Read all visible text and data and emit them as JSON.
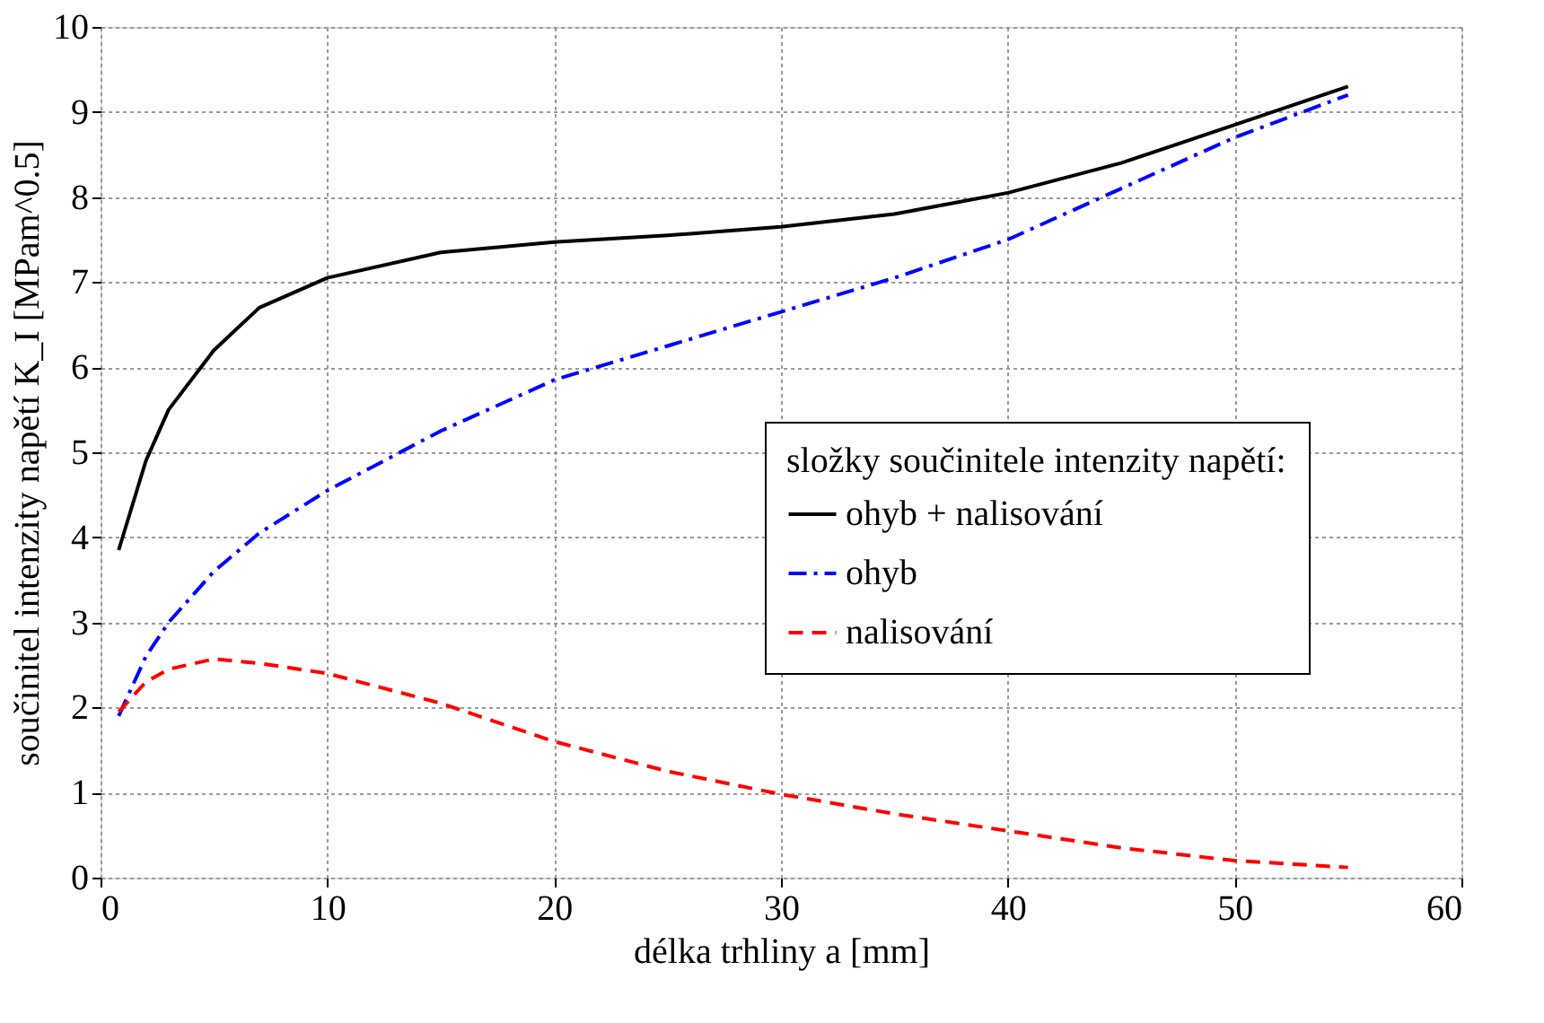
{
  "chart_data": {
    "type": "line",
    "xlabel": "délka trhliny a [mm]",
    "ylabel": "součinitel intenzity napětí K_I [MPam^0.5]",
    "legend_title": "složky součinitele intenzity napětí:",
    "legend": "right",
    "grid": true,
    "xlim": [
      0,
      60
    ],
    "xticks": [
      0,
      10,
      20,
      30,
      40,
      50,
      60
    ],
    "ylim": [
      0,
      10
    ],
    "yticks": [
      0,
      1,
      2,
      3,
      4,
      5,
      6,
      7,
      8,
      9,
      10
    ],
    "x": [
      0.8,
      2,
      3,
      5,
      7,
      10,
      15,
      20,
      25,
      30,
      35,
      40,
      45,
      50,
      55
    ],
    "series": [
      {
        "name": "ohyb + nalisování",
        "color": "#000000",
        "line_style": "solid",
        "values": [
          3.85,
          4.9,
          5.5,
          6.2,
          6.7,
          7.05,
          7.35,
          7.47,
          7.55,
          7.65,
          7.8,
          8.05,
          8.4,
          8.85,
          9.3
        ]
      },
      {
        "name": "ohyb",
        "color": "#0000ff",
        "line_style": "dashdot",
        "values": [
          1.9,
          2.6,
          3.0,
          3.6,
          4.05,
          4.55,
          5.25,
          5.85,
          6.25,
          6.65,
          7.05,
          7.5,
          8.1,
          8.7,
          9.2
        ]
      },
      {
        "name": "nalisování",
        "color": "#ff0000",
        "line_style": "dashed",
        "values": [
          1.95,
          2.3,
          2.45,
          2.57,
          2.52,
          2.4,
          2.05,
          1.6,
          1.25,
          0.98,
          0.75,
          0.55,
          0.35,
          0.2,
          0.12
        ]
      }
    ]
  }
}
